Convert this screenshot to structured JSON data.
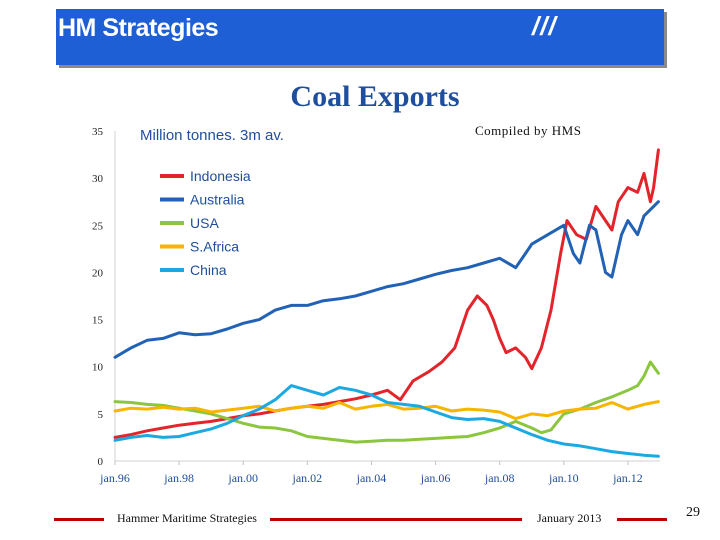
{
  "header": {
    "title": "HM Strategies",
    "logo": "///"
  },
  "footer": {
    "company": "Hammer Maritime Strategies",
    "date": "January 2013",
    "page": "29"
  },
  "chart_data": {
    "type": "line",
    "title": "Coal Exports",
    "ylabel": "Million tonnes. 3m av.",
    "annotation": "Compiled by HMS",
    "ylim": [
      0,
      35
    ],
    "yticks": [
      0,
      5,
      10,
      15,
      20,
      25,
      30,
      35
    ],
    "xrange": [
      "1996-01",
      "2012-12"
    ],
    "xticks": [
      "jan.96",
      "jan.98",
      "jan.00",
      "jan.02",
      "jan.04",
      "jan.06",
      "jan.08",
      "jan.10",
      "jan.12"
    ],
    "legend_position": "top-left",
    "series": [
      {
        "name": "Indonesia",
        "color": "#e3242b",
        "values": [
          [
            1996.0,
            2.5
          ],
          [
            1996.5,
            2.8
          ],
          [
            1997.0,
            3.2
          ],
          [
            1997.5,
            3.5
          ],
          [
            1998.0,
            3.8
          ],
          [
            1998.5,
            4.0
          ],
          [
            1999.0,
            4.2
          ],
          [
            1999.5,
            4.5
          ],
          [
            2000.0,
            4.8
          ],
          [
            2000.5,
            5.0
          ],
          [
            2001.0,
            5.3
          ],
          [
            2001.5,
            5.6
          ],
          [
            2002.0,
            5.8
          ],
          [
            2002.5,
            6.0
          ],
          [
            2003.0,
            6.3
          ],
          [
            2003.5,
            6.6
          ],
          [
            2004.0,
            7.0
          ],
          [
            2004.5,
            7.5
          ],
          [
            2004.9,
            6.5
          ],
          [
            2005.3,
            8.5
          ],
          [
            2005.8,
            9.5
          ],
          [
            2006.2,
            10.5
          ],
          [
            2006.6,
            12.0
          ],
          [
            2007.0,
            16.0
          ],
          [
            2007.3,
            17.5
          ],
          [
            2007.6,
            16.5
          ],
          [
            2007.8,
            15.0
          ],
          [
            2008.0,
            13.0
          ],
          [
            2008.2,
            11.5
          ],
          [
            2008.5,
            12.0
          ],
          [
            2008.8,
            11.0
          ],
          [
            2009.0,
            9.8
          ],
          [
            2009.3,
            12.0
          ],
          [
            2009.6,
            16.0
          ],
          [
            2009.9,
            22.0
          ],
          [
            2010.1,
            25.5
          ],
          [
            2010.4,
            24.0
          ],
          [
            2010.7,
            23.5
          ],
          [
            2011.0,
            27.0
          ],
          [
            2011.2,
            26.0
          ],
          [
            2011.5,
            24.5
          ],
          [
            2011.7,
            27.5
          ],
          [
            2012.0,
            29.0
          ],
          [
            2012.3,
            28.5
          ],
          [
            2012.5,
            30.5
          ],
          [
            2012.7,
            27.5
          ],
          [
            2012.8,
            29.0
          ],
          [
            2012.95,
            33.0
          ]
        ]
      },
      {
        "name": "Australia",
        "color": "#2262b4",
        "values": [
          [
            1996.0,
            11.0
          ],
          [
            1996.5,
            12.0
          ],
          [
            1997.0,
            12.8
          ],
          [
            1997.5,
            13.0
          ],
          [
            1998.0,
            13.6
          ],
          [
            1998.5,
            13.4
          ],
          [
            1999.0,
            13.5
          ],
          [
            1999.5,
            14.0
          ],
          [
            2000.0,
            14.6
          ],
          [
            2000.5,
            15.0
          ],
          [
            2001.0,
            16.0
          ],
          [
            2001.5,
            16.5
          ],
          [
            2002.0,
            16.5
          ],
          [
            2002.5,
            17.0
          ],
          [
            2003.0,
            17.2
          ],
          [
            2003.5,
            17.5
          ],
          [
            2004.0,
            18.0
          ],
          [
            2004.5,
            18.5
          ],
          [
            2005.0,
            18.8
          ],
          [
            2005.5,
            19.3
          ],
          [
            2006.0,
            19.8
          ],
          [
            2006.5,
            20.2
          ],
          [
            2007.0,
            20.5
          ],
          [
            2007.5,
            21.0
          ],
          [
            2008.0,
            21.5
          ],
          [
            2008.5,
            20.5
          ],
          [
            2008.8,
            22.0
          ],
          [
            2009.0,
            23.0
          ],
          [
            2009.5,
            24.0
          ],
          [
            2010.0,
            25.0
          ],
          [
            2010.3,
            22.0
          ],
          [
            2010.5,
            21.0
          ],
          [
            2010.8,
            25.0
          ],
          [
            2011.0,
            24.5
          ],
          [
            2011.3,
            20.0
          ],
          [
            2011.5,
            19.5
          ],
          [
            2011.8,
            24.0
          ],
          [
            2012.0,
            25.5
          ],
          [
            2012.3,
            24.0
          ],
          [
            2012.5,
            26.0
          ],
          [
            2012.8,
            27.0
          ],
          [
            2012.95,
            27.5
          ]
        ]
      },
      {
        "name": "USA",
        "color": "#8cc63f",
        "values": [
          [
            1996.0,
            6.3
          ],
          [
            1996.5,
            6.2
          ],
          [
            1997.0,
            6.0
          ],
          [
            1997.5,
            5.9
          ],
          [
            1998.0,
            5.6
          ],
          [
            1998.5,
            5.3
          ],
          [
            1999.0,
            5.0
          ],
          [
            1999.5,
            4.5
          ],
          [
            2000.0,
            4.0
          ],
          [
            2000.5,
            3.6
          ],
          [
            2001.0,
            3.5
          ],
          [
            2001.5,
            3.2
          ],
          [
            2002.0,
            2.6
          ],
          [
            2002.5,
            2.4
          ],
          [
            2003.0,
            2.2
          ],
          [
            2003.5,
            2.0
          ],
          [
            2004.0,
            2.1
          ],
          [
            2004.5,
            2.2
          ],
          [
            2005.0,
            2.2
          ],
          [
            2005.5,
            2.3
          ],
          [
            2006.0,
            2.4
          ],
          [
            2006.5,
            2.5
          ],
          [
            2007.0,
            2.6
          ],
          [
            2007.5,
            3.0
          ],
          [
            2008.0,
            3.5
          ],
          [
            2008.5,
            4.2
          ],
          [
            2009.0,
            3.5
          ],
          [
            2009.3,
            3.0
          ],
          [
            2009.6,
            3.3
          ],
          [
            2010.0,
            5.0
          ],
          [
            2010.5,
            5.5
          ],
          [
            2011.0,
            6.2
          ],
          [
            2011.5,
            6.8
          ],
          [
            2012.0,
            7.5
          ],
          [
            2012.3,
            8.0
          ],
          [
            2012.5,
            9.0
          ],
          [
            2012.7,
            10.5
          ],
          [
            2012.95,
            9.3
          ]
        ]
      },
      {
        "name": "S.Africa",
        "color": "#f7b500",
        "values": [
          [
            1996.0,
            5.3
          ],
          [
            1996.5,
            5.6
          ],
          [
            1997.0,
            5.5
          ],
          [
            1997.5,
            5.7
          ],
          [
            1998.0,
            5.5
          ],
          [
            1998.5,
            5.6
          ],
          [
            1999.0,
            5.2
          ],
          [
            1999.5,
            5.4
          ],
          [
            2000.0,
            5.6
          ],
          [
            2000.5,
            5.8
          ],
          [
            2001.0,
            5.3
          ],
          [
            2001.5,
            5.6
          ],
          [
            2002.0,
            5.8
          ],
          [
            2002.5,
            5.6
          ],
          [
            2003.0,
            6.2
          ],
          [
            2003.5,
            5.5
          ],
          [
            2004.0,
            5.8
          ],
          [
            2004.5,
            6.0
          ],
          [
            2005.0,
            5.5
          ],
          [
            2005.5,
            5.6
          ],
          [
            2006.0,
            5.8
          ],
          [
            2006.5,
            5.3
          ],
          [
            2007.0,
            5.5
          ],
          [
            2007.5,
            5.4
          ],
          [
            2008.0,
            5.2
          ],
          [
            2008.5,
            4.5
          ],
          [
            2009.0,
            5.0
          ],
          [
            2009.5,
            4.8
          ],
          [
            2010.0,
            5.3
          ],
          [
            2010.5,
            5.5
          ],
          [
            2011.0,
            5.6
          ],
          [
            2011.5,
            6.2
          ],
          [
            2012.0,
            5.5
          ],
          [
            2012.5,
            6.0
          ],
          [
            2012.95,
            6.3
          ]
        ]
      },
      {
        "name": "China",
        "color": "#1ca9e1",
        "values": [
          [
            1996.0,
            2.2
          ],
          [
            1996.5,
            2.5
          ],
          [
            1997.0,
            2.7
          ],
          [
            1997.5,
            2.5
          ],
          [
            1998.0,
            2.6
          ],
          [
            1998.5,
            3.0
          ],
          [
            1999.0,
            3.4
          ],
          [
            1999.5,
            4.0
          ],
          [
            2000.0,
            4.8
          ],
          [
            2000.5,
            5.5
          ],
          [
            2001.0,
            6.5
          ],
          [
            2001.5,
            8.0
          ],
          [
            2002.0,
            7.5
          ],
          [
            2002.5,
            7.0
          ],
          [
            2003.0,
            7.8
          ],
          [
            2003.5,
            7.5
          ],
          [
            2004.0,
            7.0
          ],
          [
            2004.5,
            6.2
          ],
          [
            2005.0,
            6.0
          ],
          [
            2005.5,
            5.8
          ],
          [
            2006.0,
            5.2
          ],
          [
            2006.5,
            4.6
          ],
          [
            2007.0,
            4.4
          ],
          [
            2007.5,
            4.5
          ],
          [
            2008.0,
            4.2
          ],
          [
            2008.5,
            3.5
          ],
          [
            2009.0,
            2.8
          ],
          [
            2009.5,
            2.2
          ],
          [
            2010.0,
            1.8
          ],
          [
            2010.5,
            1.6
          ],
          [
            2011.0,
            1.3
          ],
          [
            2011.5,
            1.0
          ],
          [
            2012.0,
            0.8
          ],
          [
            2012.5,
            0.6
          ],
          [
            2012.95,
            0.5
          ]
        ]
      }
    ]
  }
}
